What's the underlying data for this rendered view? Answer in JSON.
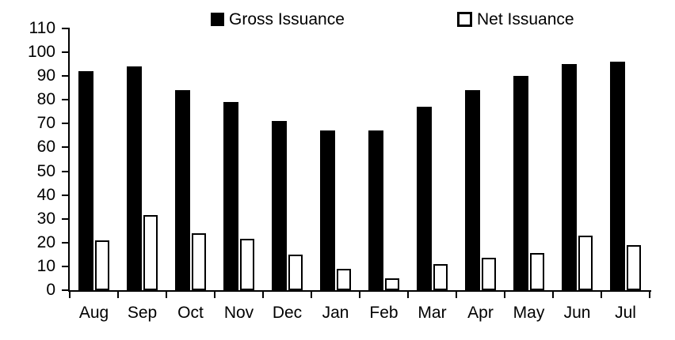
{
  "chart_data": {
    "type": "bar",
    "title": "",
    "xlabel": "",
    "ylabel": "",
    "categories": [
      "Aug",
      "Sep",
      "Oct",
      "Nov",
      "Dec",
      "Jan",
      "Feb",
      "Mar",
      "Apr",
      "May",
      "Jun",
      "Jul"
    ],
    "series": [
      {
        "name": "Gross Issuance",
        "style": "solid-black",
        "values": [
          92,
          94,
          84,
          79,
          71,
          67,
          67,
          77,
          84,
          90,
          95,
          96
        ]
      },
      {
        "name": "Net Issuance",
        "style": "white-outlined",
        "values": [
          21,
          31.5,
          24,
          21.5,
          15,
          9,
          5,
          11,
          13.5,
          15.5,
          23,
          19
        ]
      }
    ],
    "ylim": [
      0,
      110
    ],
    "yticks": [
      0,
      10,
      20,
      30,
      40,
      50,
      60,
      70,
      80,
      90,
      100,
      110
    ],
    "grid": false,
    "legend_position": "top"
  },
  "colors": {
    "gross_fill": "#000000",
    "net_fill": "#ffffff",
    "net_outline": "#000000",
    "axis": "#000000",
    "text": "#000000",
    "background": "#ffffff"
  }
}
